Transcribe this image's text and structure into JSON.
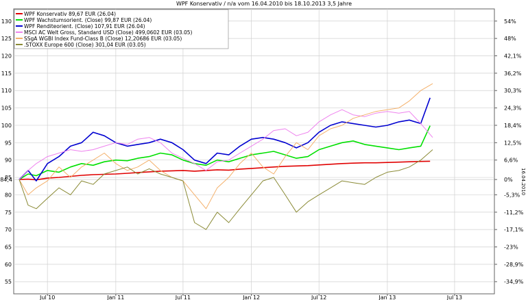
{
  "chart_data": {
    "type": "line",
    "title": "WPF Konservativ / n/a vom 16.04.2010 bis 18.10.2013 3,5 Jahre",
    "x_unit": "date",
    "x_range": [
      "2010-04-16",
      "2013-10-18"
    ],
    "x_ticks": [
      {
        "label": "Jul 10",
        "date": "2010-07-01"
      },
      {
        "label": "Jan 11",
        "date": "2011-01-01"
      },
      {
        "label": "Jul 11",
        "date": "2011-07-01"
      },
      {
        "label": "Jan 12",
        "date": "2012-01-01"
      },
      {
        "label": "Jul 12",
        "date": "2012-07-01"
      },
      {
        "label": "Jan 13",
        "date": "2013-01-01"
      },
      {
        "label": "Jul 13",
        "date": "2013-07-01"
      }
    ],
    "y_ticks_left": [
      55,
      60,
      65,
      70,
      75,
      80,
      85,
      90,
      95,
      100,
      105,
      110,
      115,
      120,
      125,
      130
    ],
    "y_ticks_right": [
      {
        "label": "54%",
        "value": 130
      },
      {
        "label": "48%",
        "value": 125
      },
      {
        "label": "42,1%",
        "value": 120
      },
      {
        "label": "36,2%",
        "value": 115
      },
      {
        "label": "30,3%",
        "value": 110
      },
      {
        "label": "24,3%",
        "value": 105
      },
      {
        "label": "18,4%",
        "value": 100
      },
      {
        "label": "12,5%",
        "value": 95
      },
      {
        "label": "6,6%",
        "value": 90
      },
      {
        "label": "0%",
        "value": 84.4
      },
      {
        "label": "-5,3%",
        "value": 80
      },
      {
        "label": "-11,2%",
        "value": 75
      },
      {
        "label": "-17,1%",
        "value": 70
      },
      {
        "label": "-23%",
        "value": 65
      },
      {
        "label": "-28,9%",
        "value": 60
      },
      {
        "label": "-34,9%",
        "value": 55
      }
    ],
    "y_base_label": "84,4",
    "y_base_value": 84.4,
    "right_axis_label": "16.04.2010",
    "ylim": [
      51.5,
      133.5
    ],
    "grid": true,
    "legend_position": "top-left",
    "series": [
      {
        "name": "WPF Konservativ 89,67 EUR (26.04)",
        "color": "#e00000",
        "x": [
          "2010-04-16",
          "2010-05-10",
          "2010-06-01",
          "2010-07-01",
          "2010-08-01",
          "2010-09-01",
          "2010-10-01",
          "2010-11-01",
          "2010-12-01",
          "2011-01-01",
          "2011-02-01",
          "2011-03-01",
          "2011-04-01",
          "2011-05-01",
          "2011-06-01",
          "2011-07-01",
          "2011-08-01",
          "2011-09-01",
          "2011-10-01",
          "2011-11-01",
          "2011-12-01",
          "2012-01-01",
          "2012-02-01",
          "2012-03-01",
          "2012-04-01",
          "2012-05-01",
          "2012-06-01",
          "2012-07-01",
          "2012-08-01",
          "2012-09-01",
          "2012-10-01",
          "2012-11-01",
          "2012-12-01",
          "2013-01-01",
          "2013-02-01",
          "2013-03-01",
          "2013-04-01",
          "2013-04-26"
        ],
        "y": [
          84.4,
          84.5,
          84.3,
          84.8,
          85.0,
          85.3,
          85.6,
          85.8,
          85.9,
          86.0,
          86.2,
          86.4,
          86.6,
          86.8,
          86.9,
          87.0,
          86.8,
          87.0,
          87.2,
          87.1,
          87.4,
          87.6,
          87.8,
          88.0,
          88.2,
          88.3,
          88.4,
          88.6,
          88.8,
          89.0,
          89.1,
          89.2,
          89.2,
          89.3,
          89.4,
          89.5,
          89.6,
          89.67
        ]
      },
      {
        "name": "WPF Wachstumsorient. (Close) 99,87 EUR (26.04)",
        "color": "#00e000",
        "x": [
          "2010-04-16",
          "2010-05-10",
          "2010-06-01",
          "2010-07-01",
          "2010-08-01",
          "2010-09-01",
          "2010-10-01",
          "2010-11-01",
          "2010-12-01",
          "2011-01-01",
          "2011-02-01",
          "2011-03-01",
          "2011-04-01",
          "2011-05-01",
          "2011-06-01",
          "2011-07-01",
          "2011-08-01",
          "2011-09-01",
          "2011-10-01",
          "2011-11-01",
          "2011-12-01",
          "2012-01-01",
          "2012-02-01",
          "2012-03-01",
          "2012-04-01",
          "2012-05-01",
          "2012-06-01",
          "2012-07-01",
          "2012-08-01",
          "2012-09-01",
          "2012-10-01",
          "2012-11-01",
          "2012-12-01",
          "2013-01-01",
          "2013-02-01",
          "2013-03-01",
          "2013-04-01",
          "2013-04-26"
        ],
        "y": [
          84.4,
          86.0,
          85.5,
          87.0,
          86.5,
          88.0,
          89.0,
          88.5,
          89.5,
          90.0,
          89.8,
          90.5,
          91.0,
          92.0,
          91.5,
          90.0,
          89.0,
          88.5,
          90.0,
          89.5,
          90.5,
          91.5,
          92.0,
          92.5,
          91.5,
          90.5,
          91.0,
          93.0,
          94.0,
          95.0,
          95.5,
          94.5,
          94.0,
          93.5,
          93.0,
          93.5,
          94.0,
          99.87
        ]
      },
      {
        "name": "WPF Renditeorient. (Close) 107,91 EUR (26.04)",
        "color": "#0000d0",
        "x": [
          "2010-04-16",
          "2010-05-10",
          "2010-06-01",
          "2010-07-01",
          "2010-08-01",
          "2010-09-01",
          "2010-10-01",
          "2010-11-01",
          "2010-12-01",
          "2011-01-01",
          "2011-02-01",
          "2011-03-01",
          "2011-04-01",
          "2011-05-01",
          "2011-06-01",
          "2011-07-01",
          "2011-08-01",
          "2011-09-01",
          "2011-10-01",
          "2011-11-01",
          "2011-12-01",
          "2012-01-01",
          "2012-02-01",
          "2012-03-01",
          "2012-04-01",
          "2012-05-01",
          "2012-06-01",
          "2012-07-01",
          "2012-08-01",
          "2012-09-01",
          "2012-10-01",
          "2012-11-01",
          "2012-12-01",
          "2013-01-01",
          "2013-02-01",
          "2013-03-01",
          "2013-04-01",
          "2013-04-26"
        ],
        "y": [
          84.4,
          87.0,
          84.0,
          89.0,
          91.0,
          94.0,
          95.0,
          98.0,
          97.0,
          95.0,
          94.0,
          94.5,
          95.0,
          96.0,
          95.0,
          93.0,
          90.0,
          89.0,
          92.0,
          91.5,
          94.0,
          96.0,
          96.5,
          96.0,
          95.0,
          93.5,
          95.0,
          98.0,
          100.0,
          101.0,
          100.5,
          100.0,
          99.5,
          100.0,
          101.0,
          101.5,
          100.5,
          107.91
        ]
      },
      {
        "name": "MSCI AC Welt Gross, Standard USD (Close) 499,0602 EUR (03.05)",
        "color": "#ee82ee",
        "x": [
          "2010-04-16",
          "2010-05-10",
          "2010-06-01",
          "2010-07-01",
          "2010-08-01",
          "2010-09-01",
          "2010-10-01",
          "2010-11-01",
          "2010-12-01",
          "2011-01-01",
          "2011-02-01",
          "2011-03-01",
          "2011-04-01",
          "2011-05-01",
          "2011-06-01",
          "2011-07-01",
          "2011-08-01",
          "2011-09-01",
          "2011-10-01",
          "2011-11-01",
          "2011-12-01",
          "2012-01-01",
          "2012-02-01",
          "2012-03-01",
          "2012-04-01",
          "2012-05-01",
          "2012-06-01",
          "2012-07-01",
          "2012-08-01",
          "2012-09-01",
          "2012-10-01",
          "2012-11-01",
          "2012-12-01",
          "2013-01-01",
          "2013-02-01",
          "2013-03-01",
          "2013-04-01",
          "2013-05-03"
        ],
        "y": [
          84.4,
          87.0,
          89.0,
          91.0,
          92.0,
          93.0,
          92.5,
          93.0,
          94.0,
          95.0,
          94.5,
          96.0,
          96.5,
          95.0,
          92.0,
          90.5,
          89.0,
          87.0,
          89.5,
          90.0,
          92.0,
          94.0,
          96.0,
          98.5,
          99.0,
          97.0,
          98.0,
          101.0,
          103.0,
          104.5,
          103.0,
          102.5,
          103.5,
          104.0,
          103.5,
          104.0,
          100.5,
          96.5
        ]
      },
      {
        "name": "SSgA WGBI Index Fund-Class B (Close) 12,20686 EUR (03.05)",
        "color": "#f4b06a",
        "x": [
          "2010-04-16",
          "2010-05-10",
          "2010-06-01",
          "2010-07-01",
          "2010-08-01",
          "2010-09-01",
          "2010-10-01",
          "2010-11-01",
          "2010-12-01",
          "2011-01-01",
          "2011-02-01",
          "2011-03-01",
          "2011-04-01",
          "2011-05-01",
          "2011-06-01",
          "2011-07-01",
          "2011-08-01",
          "2011-09-01",
          "2011-10-01",
          "2011-11-01",
          "2011-12-01",
          "2012-01-01",
          "2012-02-01",
          "2012-03-01",
          "2012-04-01",
          "2012-05-01",
          "2012-06-01",
          "2012-07-01",
          "2012-08-01",
          "2012-09-01",
          "2012-10-01",
          "2012-11-01",
          "2012-12-01",
          "2013-01-01",
          "2013-02-01",
          "2013-03-01",
          "2013-04-01",
          "2013-05-03"
        ],
        "y": [
          84.4,
          80.0,
          82.0,
          84.0,
          88.0,
          85.0,
          88.0,
          90.0,
          92.0,
          89.0,
          87.0,
          88.0,
          90.0,
          87.0,
          85.0,
          84.0,
          80.0,
          76.0,
          82.0,
          85.0,
          89.0,
          92.0,
          88.0,
          86.0,
          91.0,
          95.0,
          93.0,
          97.0,
          99.0,
          100.0,
          102.0,
          103.0,
          104.0,
          104.5,
          105.0,
          107.0,
          110.0,
          112.0
        ]
      },
      {
        "name": ".STOXX Europe 600 (Close) 301,04 EUR (03.05)",
        "color": "#8a8a35",
        "x": [
          "2010-04-16",
          "2010-05-10",
          "2010-06-01",
          "2010-07-01",
          "2010-08-01",
          "2010-09-01",
          "2010-10-01",
          "2010-11-01",
          "2010-12-01",
          "2011-01-01",
          "2011-02-01",
          "2011-03-01",
          "2011-04-01",
          "2011-05-01",
          "2011-06-01",
          "2011-07-01",
          "2011-08-01",
          "2011-09-01",
          "2011-10-01",
          "2011-11-01",
          "2011-12-01",
          "2012-01-01",
          "2012-02-01",
          "2012-03-01",
          "2012-04-01",
          "2012-05-01",
          "2012-06-01",
          "2012-07-01",
          "2012-08-01",
          "2012-09-01",
          "2012-10-01",
          "2012-11-01",
          "2012-12-01",
          "2013-01-01",
          "2013-02-01",
          "2013-03-01",
          "2013-04-01",
          "2013-05-03"
        ],
        "y": [
          84.4,
          77.0,
          76.0,
          79.0,
          82.0,
          80.0,
          84.0,
          83.0,
          86.0,
          87.0,
          88.0,
          86.0,
          87.5,
          86.0,
          85.0,
          84.0,
          72.0,
          70.0,
          75.0,
          72.0,
          76.0,
          80.0,
          84.0,
          85.0,
          80.0,
          75.0,
          78.0,
          80.0,
          82.0,
          84.0,
          83.5,
          83.0,
          85.0,
          86.5,
          87.0,
          88.0,
          90.0,
          93.0
        ]
      }
    ]
  }
}
